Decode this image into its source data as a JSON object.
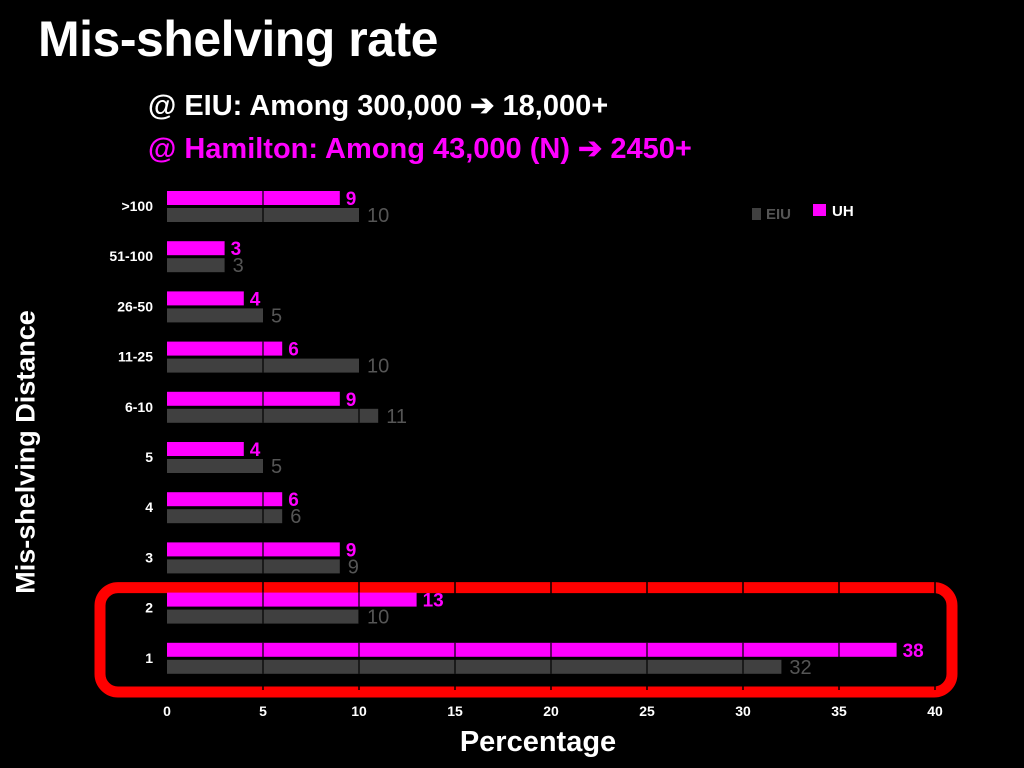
{
  "title": "Mis-shelving rate",
  "subtitle_eiu": {
    "prefix": "@ EIU: Among 300,000",
    "arrow": "➔",
    "suffix": "18,000+"
  },
  "subtitle_hamilton": {
    "prefix": "@ Hamilton: Among 43,000 (N)",
    "arrow": "➔",
    "suffix": "2450+"
  },
  "chart_data": {
    "type": "bar",
    "orientation": "horizontal",
    "categories": [
      ">100",
      "51-100",
      "26-50",
      "11-25",
      "6-10",
      "5",
      "4",
      "3",
      "2",
      "1"
    ],
    "series": [
      {
        "name": "UH",
        "values": [
          9,
          3,
          4,
          6,
          9,
          4,
          6,
          9,
          13,
          38
        ],
        "color": "#FF00FF"
      },
      {
        "name": "EIU",
        "values": [
          10,
          3,
          5,
          10,
          11,
          5,
          6,
          9,
          10,
          32
        ],
        "color": "#404040"
      }
    ],
    "xlabel": "Percentage",
    "ylabel": "Mis-shelving Distance",
    "xlim": [
      0,
      40
    ],
    "xticks": [
      0,
      5,
      10,
      15,
      20,
      25,
      30,
      35,
      40
    ],
    "grid": true,
    "legend": "top-right",
    "highlight": {
      "categories": [
        "2",
        "1"
      ],
      "color": "#FF0000"
    }
  }
}
